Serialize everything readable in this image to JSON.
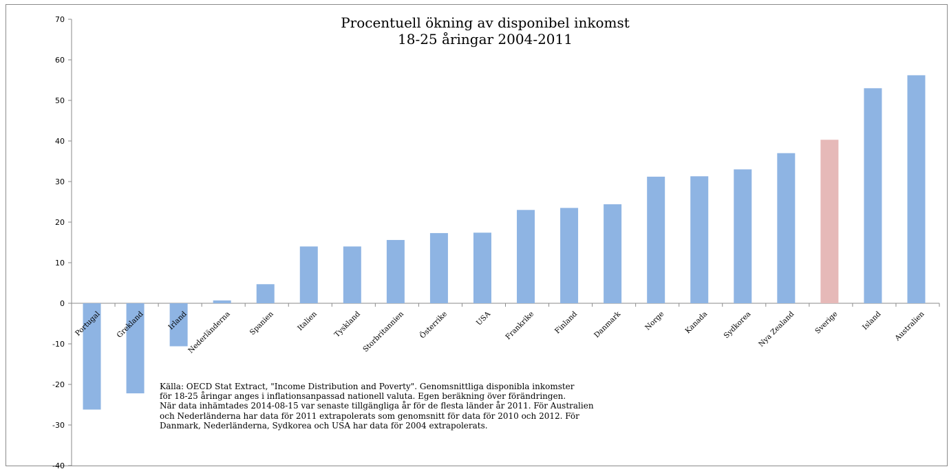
{
  "chart_data": {
    "type": "bar",
    "title": [
      "Procentuell ökning av disponibel inkomst",
      "18-25  åringar 2004-2011"
    ],
    "xlabel": "",
    "ylabel": "",
    "ylim": [
      -40,
      70
    ],
    "yticks": [
      70,
      60,
      50,
      40,
      30,
      20,
      10,
      0,
      -10,
      -20,
      -30,
      -40
    ],
    "categories": [
      "Portugal",
      "Grekland",
      "Irland",
      "Nederländerna",
      "Spanien",
      "Italien",
      "Tyskland",
      "Storbritannien",
      "Österrike",
      "USA",
      "Frankrike",
      "Finland",
      "Danmark",
      "Norge",
      "Kanada",
      "Sydkorea",
      "Nya Zealand",
      "Sverige",
      "Island",
      "Australien"
    ],
    "values": [
      -26.2,
      -22.2,
      -10.6,
      0.7,
      4.7,
      14.0,
      14.0,
      15.6,
      17.3,
      17.4,
      23.0,
      23.5,
      24.4,
      31.2,
      31.3,
      33.0,
      37.0,
      40.3,
      53.0,
      56.2
    ],
    "colors": {
      "default": "#8eb4e3",
      "highlight": "#e6b9b8",
      "highlight_category": "Sverige"
    },
    "grid": false,
    "legend": "none"
  },
  "note": [
    "Källa: OECD Stat Extract, \"Income Distribution and Poverty\". Genomsnittliga disponibla inkomster",
    "för 18-25 åringar anges i inflationsanpassad nationell valuta. Egen beräkning över förändringen.",
    "När data inhämtades 2014-08-15 var senaste tillgängliga år för de flesta länder år 2011. För Australien",
    "och Nederländerna har data för 2011 extrapolerats som genomsnitt för data för 2010 och 2012. För",
    "Danmark, Nederländerna, Sydkorea och USA har data för 2004 extrapolerats."
  ]
}
